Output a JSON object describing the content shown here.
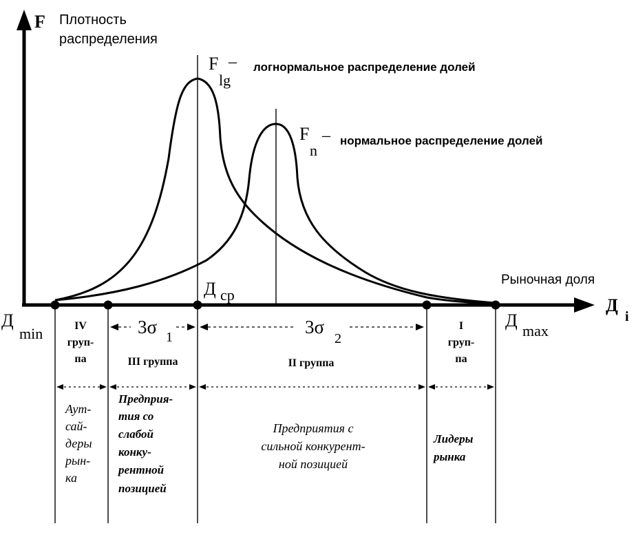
{
  "y_axis": {
    "symbol": "F",
    "label_line1": "Плотность",
    "label_line2": "распределения"
  },
  "x_axis": {
    "symbol": "Д",
    "symbol_sub": "i",
    "label": "Рыночная доля"
  },
  "markers": {
    "dmin": {
      "main": "Д",
      "sub": "min"
    },
    "dcp": {
      "main": "Д",
      "sub": "ср"
    },
    "dmax": {
      "main": "Д",
      "sub": "max"
    }
  },
  "legend": {
    "lognormal": {
      "main": "F",
      "sub": "lg",
      "dash": "–",
      "text": "логнормальное распределение долей"
    },
    "normal": {
      "main": "F",
      "sub": "n",
      "dash": "–",
      "text": "нормальное распределение долей"
    }
  },
  "spans": {
    "sigma1": {
      "main": "3σ",
      "sub": "1"
    },
    "sigma2": {
      "main": "3σ",
      "sub": "2"
    }
  },
  "groups": [
    {
      "name_lines": [
        "IV",
        "груп-",
        "па"
      ],
      "desc_lines": [
        "Аут-",
        "сай-",
        "деры",
        "рын-",
        "ка"
      ]
    },
    {
      "name_lines": [
        "III группа"
      ],
      "desc_lines": [
        "Предприя-",
        "тия со",
        "слабой",
        "конку-",
        "рентной",
        "позицией"
      ]
    },
    {
      "name_lines": [
        "II группа"
      ],
      "desc_lines": [
        "Предприятия с",
        "сильной конкурент-",
        "ной позицией"
      ]
    },
    {
      "name_lines": [
        "I",
        "груп-",
        "па"
      ],
      "desc_lines": [
        "Лидеры",
        "рынка"
      ]
    }
  ]
}
